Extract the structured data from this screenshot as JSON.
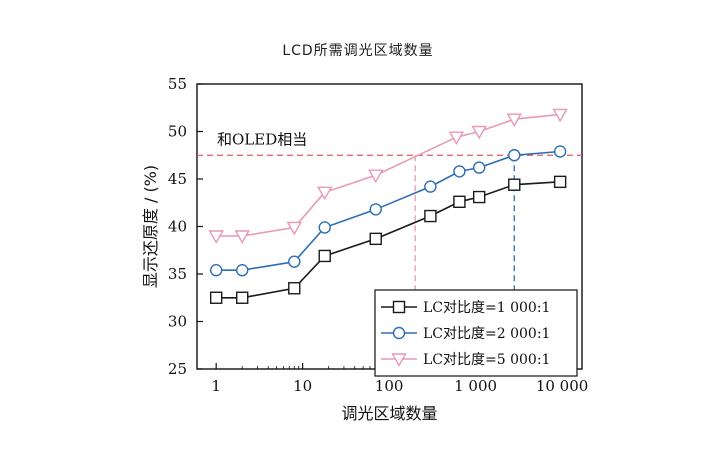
{
  "page": {
    "title": "LCD所需调光区域数量"
  },
  "chart_data": {
    "type": "line",
    "x_scale": "log",
    "xlabel": "调光区域数量",
    "ylabel": "显示还原度 / (%)",
    "xlim": [
      0.6,
      17000
    ],
    "ylim": [
      25,
      55
    ],
    "x_ticks": [
      1,
      10,
      100,
      1000,
      10000
    ],
    "x_tick_labels": [
      "1",
      "10",
      "100",
      "1 000",
      "10 000"
    ],
    "y_ticks": [
      25,
      30,
      35,
      40,
      45,
      50,
      55
    ],
    "y_tick_labels": [
      "25",
      "30",
      "35",
      "40",
      "45",
      "50",
      "55"
    ],
    "series": [
      {
        "name": "LC对比度=1 000:1",
        "color": "#1a1a1a",
        "marker": "square",
        "points": [
          [
            1,
            32.5
          ],
          [
            2,
            32.5
          ],
          [
            8,
            33.5
          ],
          [
            18,
            36.9
          ],
          [
            70,
            38.7
          ],
          [
            300,
            41.1
          ],
          [
            650,
            42.6
          ],
          [
            1100,
            43.1
          ],
          [
            2800,
            44.4
          ],
          [
            9500,
            44.7
          ]
        ]
      },
      {
        "name": "LC对比度=2 000:1",
        "color": "#2e6db4",
        "marker": "circle",
        "points": [
          [
            1,
            35.4
          ],
          [
            2,
            35.4
          ],
          [
            8,
            36.3
          ],
          [
            18,
            39.9
          ],
          [
            70,
            41.8
          ],
          [
            300,
            44.2
          ],
          [
            650,
            45.8
          ],
          [
            1100,
            46.2
          ],
          [
            2800,
            47.5
          ],
          [
            9500,
            47.9
          ]
        ]
      },
      {
        "name": "LC对比度=5 000:1",
        "color": "#e899b3",
        "marker": "triangle-down",
        "points": [
          [
            1,
            39.0
          ],
          [
            2,
            39.0
          ],
          [
            8,
            39.9
          ],
          [
            18,
            43.6
          ],
          [
            70,
            45.4
          ],
          [
            600,
            49.4
          ],
          [
            1100,
            50.0
          ],
          [
            2800,
            51.3
          ],
          [
            9500,
            51.8
          ]
        ]
      }
    ],
    "annotations": [
      {
        "text": "和OLED相当",
        "y": 47.5,
        "line_color": "#e05a66"
      }
    ],
    "reference_lines": [
      {
        "orientation": "horizontal",
        "y": 47.5,
        "color": "#e05a66",
        "style": "dashed"
      },
      {
        "orientation": "vertical",
        "x": 200,
        "y_top": 47.5,
        "color": "#e899b3",
        "style": "dashed"
      },
      {
        "orientation": "vertical",
        "x": 2800,
        "y_top": 47.5,
        "color": "#2e6db4",
        "style": "dashed"
      }
    ],
    "legend": {
      "position": "bottom-right"
    },
    "grid": false
  }
}
